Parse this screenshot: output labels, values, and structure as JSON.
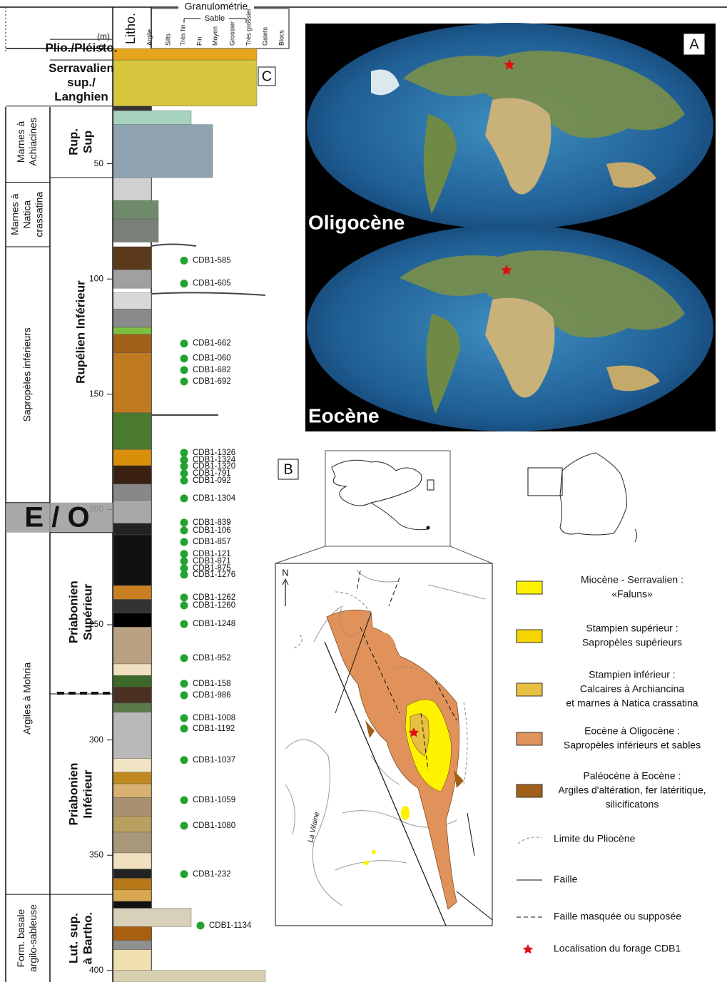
{
  "log": {
    "header": {
      "granulometry": "Granulométrie",
      "sand": "Sable",
      "litho": "Litho.",
      "unit": "(m)",
      "grain_classes": [
        "Argile",
        "Silts",
        "Très fin",
        "Fin",
        "Moyen",
        "Grossier",
        "Très grossier",
        "Galets",
        "Blocs"
      ]
    },
    "panel_letter": "C",
    "depth_lim": [
      0,
      405
    ],
    "depth_ticks": [
      0,
      50,
      100,
      150,
      200,
      250,
      300,
      350,
      400
    ],
    "formations": [
      {
        "lines": [
          "Marnes à",
          "Achiacines"
        ],
        "top": 25,
        "bottom": 56
      },
      {
        "lines": [
          "Marnes à",
          "Natica",
          "crassatina"
        ],
        "top": 58,
        "bottom": 86
      },
      {
        "lines": [
          "Sapropèles inférieurs"
        ],
        "top": 86,
        "bottom": 197
      },
      {
        "lines": [
          "Argiles à Mohria"
        ],
        "top": 197,
        "bottom": 367
      },
      {
        "lines": [
          "Form. basale",
          "argilo-sableuse"
        ],
        "top": 367,
        "bottom": 405
      }
    ],
    "stages": [
      {
        "lines": [
          "Plio./Pléisto."
        ],
        "top": -4,
        "bottom": 4
      },
      {
        "lines": [
          "Serravalien",
          "sup./",
          "Langhien"
        ],
        "top": 5,
        "bottom": 25
      },
      {
        "lines": [
          "Rup.",
          "Sup"
        ],
        "top": 25,
        "bottom": 56
      },
      {
        "lines": [
          "Rupélien Inférieur"
        ],
        "top": 56,
        "bottom": 190
      },
      {
        "lines": [
          "Priabonien",
          "Supérieur"
        ],
        "top": 210,
        "bottom": 279
      },
      {
        "lines": [
          "Priabonien",
          "Inférieur"
        ],
        "top": 280,
        "bottom": 367
      },
      {
        "lines": [
          "Lut. sup.",
          "à Bartho."
        ],
        "top": 367,
        "bottom": 405
      }
    ],
    "boundary": {
      "label": "E / O",
      "top": 197,
      "bottom": 210
    },
    "layers": [
      {
        "top": 0,
        "bottom": 5,
        "color": "#e6a51c",
        "grain": 6
      },
      {
        "top": 5,
        "bottom": 25,
        "color": "#d8c63e",
        "grain": 6
      },
      {
        "top": 25,
        "bottom": 27,
        "color": "#333333",
        "grain": 0
      },
      {
        "top": 27,
        "bottom": 33,
        "color": "#a8d2c0",
        "grain": 2
      },
      {
        "top": 33,
        "bottom": 56,
        "color": "#8fa4b0",
        "grain": 4
      },
      {
        "top": 56,
        "bottom": 66,
        "color": "#d0d0d0",
        "grain": 0
      },
      {
        "top": 66,
        "bottom": 74,
        "color": "#6f8a6a",
        "grain": 1
      },
      {
        "top": 74,
        "bottom": 84,
        "color": "#7a8078",
        "grain": 1
      },
      {
        "top": 86,
        "bottom": 96,
        "color": "#5a3a1a",
        "grain": 0
      },
      {
        "top": 96,
        "bottom": 104,
        "color": "#a0a0a0",
        "grain": 0
      },
      {
        "top": 106,
        "bottom": 113,
        "color": "#d8d8d8",
        "grain": 0
      },
      {
        "top": 113,
        "bottom": 121,
        "color": "#8a8a8a",
        "grain": 0
      },
      {
        "top": 121,
        "bottom": 124,
        "color": "#7cc040",
        "grain": 0
      },
      {
        "top": 124,
        "bottom": 132,
        "color": "#a06018",
        "grain": 0
      },
      {
        "top": 132,
        "bottom": 158,
        "color": "#c07a20",
        "grain": 0
      },
      {
        "top": 158,
        "bottom": 174,
        "color": "#4a7a30",
        "grain": 0
      },
      {
        "top": 174,
        "bottom": 181,
        "color": "#d8900a",
        "grain": 0
      },
      {
        "top": 181,
        "bottom": 189,
        "color": "#3a2010",
        "grain": 0
      },
      {
        "top": 189,
        "bottom": 196,
        "color": "#888888",
        "grain": 0
      },
      {
        "top": 196,
        "bottom": 206,
        "color": "#a8a8a8",
        "grain": 0
      },
      {
        "top": 206,
        "bottom": 211,
        "color": "#222222",
        "grain": 0
      },
      {
        "top": 211,
        "bottom": 233,
        "color": "#111111",
        "grain": 0
      },
      {
        "top": 233,
        "bottom": 239,
        "color": "#c88020",
        "grain": 0
      },
      {
        "top": 239,
        "bottom": 245,
        "color": "#333333",
        "grain": 0
      },
      {
        "top": 245,
        "bottom": 251,
        "color": "#000000",
        "grain": 0
      },
      {
        "top": 251,
        "bottom": 267,
        "color": "#b8a080",
        "grain": 0
      },
      {
        "top": 267,
        "bottom": 272,
        "color": "#f0e0c0",
        "grain": 0
      },
      {
        "top": 272,
        "bottom": 277,
        "color": "#3d6a2a",
        "grain": 0
      },
      {
        "top": 277,
        "bottom": 284,
        "color": "#4a3020",
        "grain": 0
      },
      {
        "top": 284,
        "bottom": 288,
        "color": "#5a7a4a",
        "grain": 0
      },
      {
        "top": 288,
        "bottom": 308,
        "color": "#b8b8b8",
        "grain": 0
      },
      {
        "top": 308,
        "bottom": 314,
        "color": "#f0e4c4",
        "grain": 0
      },
      {
        "top": 314,
        "bottom": 319,
        "color": "#c08a20",
        "grain": 0
      },
      {
        "top": 319,
        "bottom": 325,
        "color": "#d8b070",
        "grain": 0
      },
      {
        "top": 325,
        "bottom": 333,
        "color": "#a89070",
        "grain": 0
      },
      {
        "top": 333,
        "bottom": 340,
        "color": "#b8a060",
        "grain": 0
      },
      {
        "top": 340,
        "bottom": 349,
        "color": "#a8987a",
        "grain": 0
      },
      {
        "top": 349,
        "bottom": 356,
        "color": "#f0e0c0",
        "grain": 0
      },
      {
        "top": 356,
        "bottom": 360,
        "color": "#222222",
        "grain": 0
      },
      {
        "top": 360,
        "bottom": 365,
        "color": "#b87818",
        "grain": 0
      },
      {
        "top": 365,
        "bottom": 370,
        "color": "#d8a850",
        "grain": 0
      },
      {
        "top": 370,
        "bottom": 373,
        "color": "#111111",
        "grain": 0
      },
      {
        "top": 373,
        "bottom": 381,
        "color": "#d8d0b8",
        "grain": 2
      },
      {
        "top": 381,
        "bottom": 387,
        "color": "#a86010",
        "grain": 0
      },
      {
        "top": 387,
        "bottom": 391,
        "color": "#909090",
        "grain": 0
      },
      {
        "top": 391,
        "bottom": 400,
        "color": "#f0e0b0",
        "grain": 0
      },
      {
        "top": 400,
        "bottom": 405,
        "color": "#d8d0b0",
        "grain": 7
      }
    ],
    "samples": [
      {
        "label": "CDB1-585",
        "depth": 92
      },
      {
        "label": "CDB1-605",
        "depth": 102
      },
      {
        "label": "CDB1-662",
        "depth": 128
      },
      {
        "label": "CDB1-060",
        "depth": 134.5
      },
      {
        "label": "CDB1-682",
        "depth": 139.5
      },
      {
        "label": "CDB1-692",
        "depth": 144.5
      },
      {
        "label": "CDB1-1326",
        "depth": 175.4
      },
      {
        "label": "CDB1-1324",
        "depth": 178.5
      },
      {
        "label": "CDB1-1320",
        "depth": 181.3
      },
      {
        "label": "CDB1-791",
        "depth": 184.4
      },
      {
        "label": "CDB1-092",
        "depth": 187.5
      },
      {
        "label": "CDB1-1304",
        "depth": 195.2
      },
      {
        "label": "CDB1-839",
        "depth": 205.7
      },
      {
        "label": "CDB1-106",
        "depth": 209.1
      },
      {
        "label": "CDB1-857",
        "depth": 214.1
      },
      {
        "label": "CDB1-121",
        "depth": 219.3
      },
      {
        "label": "CDB1-871",
        "depth": 222.4
      },
      {
        "label": "CDB1-875",
        "depth": 225.5
      },
      {
        "label": "CDB1-1276",
        "depth": 228.3
      },
      {
        "label": "CDB1-1262",
        "depth": 238.2
      },
      {
        "label": "CDB1-1260",
        "depth": 241.6
      },
      {
        "label": "CDB1-1248",
        "depth": 249.7
      },
      {
        "label": "CDB1-952",
        "depth": 264.5
      },
      {
        "label": "CDB1-158",
        "depth": 275.6
      },
      {
        "label": "CDB1-986",
        "depth": 280.6
      },
      {
        "label": "CDB1-1008",
        "depth": 290.5
      },
      {
        "label": "CDB1-1192",
        "depth": 295.1
      },
      {
        "label": "CDB1-1037",
        "depth": 308.7
      },
      {
        "label": "CDB1-1059",
        "depth": 326.1
      },
      {
        "label": "CDB1-1080",
        "depth": 337.2
      },
      {
        "label": "CDB1-232",
        "depth": 358.2
      },
      {
        "label": "CDB1-1134",
        "depth": 380.5
      }
    ]
  },
  "map_a": {
    "letter": "A",
    "panels": [
      "Oligocène",
      "Eocène"
    ]
  },
  "map_b": {
    "letter": "B",
    "north": "N",
    "river": "La Vilaine",
    "legend": [
      {
        "lines": [
          "Miocène - Serravalien :",
          "«Faluns»"
        ],
        "symbol": "fill",
        "color": "#fff200"
      },
      {
        "lines": [
          "Stampien supérieur :",
          "Sapropèles supérieurs"
        ],
        "symbol": "fill",
        "color": "#f5d400"
      },
      {
        "lines": [
          "Stampien inférieur :",
          "Calcaires à Archiancina",
          "et marnes à Natica crassatina"
        ],
        "symbol": "fill",
        "color": "#e8c040"
      },
      {
        "lines": [
          "Eocène à Oligocène :",
          "Sapropèles inférieurs et sables"
        ],
        "symbol": "fill",
        "color": "#e0925a"
      },
      {
        "lines": [
          "Paléocène à Eocène :",
          "Argiles d'altération, fer latéritique,",
          "silicificatons"
        ],
        "symbol": "fill",
        "color": "#a0601a"
      },
      {
        "lines": [
          "Limite du Pliocène"
        ],
        "symbol": "pliocene"
      },
      {
        "lines": [
          "Faille"
        ],
        "symbol": "fault"
      },
      {
        "lines": [
          "Faille masquée ou supposée"
        ],
        "symbol": "hidden-fault"
      },
      {
        "lines": [
          "Localisation du forage CDB1"
        ],
        "symbol": "star"
      }
    ]
  }
}
